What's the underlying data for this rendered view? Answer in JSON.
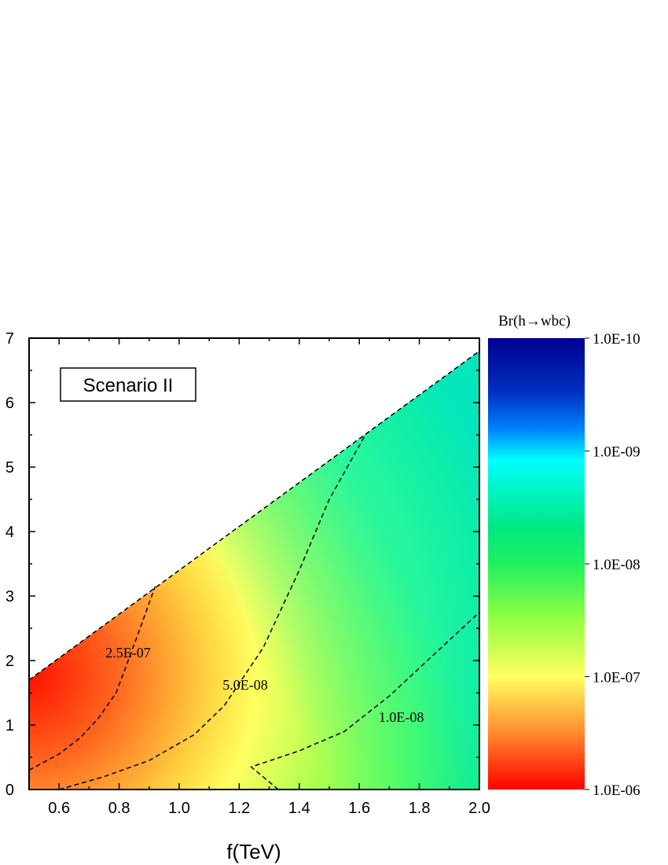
{
  "chart_data": {
    "type": "heatmap",
    "xlabel": "f(TeV)",
    "ylabel": "",
    "xlim": [
      0.5,
      2.0
    ],
    "ylim": [
      0,
      7
    ],
    "x_ticks": [
      "0.6",
      "0.8",
      "1.0",
      "1.2",
      "1.4",
      "1.6",
      "1.8",
      "2.0"
    ],
    "y_ticks": [
      "0",
      "1",
      "2",
      "3",
      "4",
      "5",
      "6",
      "7"
    ],
    "annotation": "Scenario II",
    "colorbar": {
      "title": "Br(h→wbc)",
      "scale": "log",
      "range": [
        1e-10,
        1e-06
      ],
      "tick_labels": [
        "1.0E-10",
        "1.0E-09",
        "1.0E-08",
        "1.0E-07",
        "1.0E-06"
      ],
      "colors": [
        "#00008f",
        "#0050ff",
        "#00ffff",
        "#00e060",
        "#90ff40",
        "#ffff60",
        "#ff9030",
        "#ff0000"
      ]
    },
    "region_upper_boundary": [
      [
        0.5,
        1.7
      ],
      [
        2.0,
        6.8
      ]
    ],
    "contours": [
      {
        "label": "2.5E-07",
        "label_pos": [
          0.83,
          2.05
        ],
        "points": [
          [
            0.5,
            0.3
          ],
          [
            0.6,
            0.55
          ],
          [
            0.67,
            0.8
          ],
          [
            0.73,
            1.1
          ],
          [
            0.79,
            1.5
          ],
          [
            0.83,
            2.0
          ],
          [
            0.87,
            2.5
          ],
          [
            0.92,
            3.15
          ]
        ]
      },
      {
        "label": "5.0E-08",
        "label_pos": [
          1.22,
          1.55
        ],
        "points": [
          [
            0.6,
            0.0
          ],
          [
            0.75,
            0.2
          ],
          [
            0.9,
            0.45
          ],
          [
            1.05,
            0.85
          ],
          [
            1.15,
            1.3
          ],
          [
            1.28,
            2.2
          ],
          [
            1.4,
            3.4
          ],
          [
            1.5,
            4.5
          ],
          [
            1.62,
            5.5
          ]
        ]
      },
      {
        "label": "1.0E-08",
        "label_pos": [
          1.74,
          1.05
        ],
        "points": [
          [
            1.33,
            0.0
          ],
          [
            1.24,
            0.35
          ],
          [
            1.4,
            0.6
          ],
          [
            1.55,
            0.9
          ],
          [
            1.7,
            1.45
          ],
          [
            1.85,
            2.1
          ],
          [
            2.0,
            2.75
          ]
        ]
      }
    ]
  }
}
